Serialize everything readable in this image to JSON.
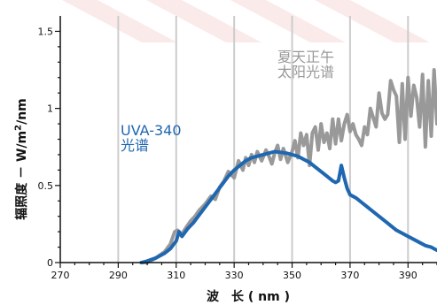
{
  "chart_data": {
    "type": "line",
    "xlabel": "波　长 ( nm )",
    "ylabel": {
      "prefix": "辐照度 － W/m",
      "sup": "2",
      "suffix": "/nm"
    },
    "xlim": [
      270,
      400
    ],
    "ylim": [
      0,
      1.6
    ],
    "xticks": [
      270,
      290,
      310,
      330,
      350,
      370,
      390
    ],
    "yticks": [
      {
        "value": 0,
        "label": "0"
      },
      {
        "value": 0.5,
        "label": "0.5"
      },
      {
        "value": 1,
        "label": "1"
      },
      {
        "value": 1.5,
        "label": "1.5"
      }
    ],
    "grid": {
      "vertical": true,
      "horizontal": false
    },
    "series": [
      {
        "name": "夏天正午太阳光谱",
        "annotation": [
          "夏天正午",
          "太阳光谱"
        ],
        "color": "#999999",
        "x": [
          298,
          300,
          303,
          306,
          308,
          309.5,
          310.5,
          311.5,
          312.5,
          313.5,
          315,
          316.5,
          318,
          320,
          322,
          323.5,
          325,
          326.5,
          328,
          330,
          331.5,
          333,
          334,
          335,
          336,
          337,
          338,
          339.5,
          341,
          342,
          343,
          344,
          345,
          346,
          347,
          348.5,
          350,
          351,
          352,
          353,
          354,
          355,
          356,
          357,
          358,
          359,
          360,
          361,
          362,
          363,
          364,
          365,
          366,
          367,
          368,
          369,
          370,
          371,
          372,
          373,
          374,
          375,
          376,
          377,
          378,
          379,
          380,
          381,
          382,
          383,
          384,
          385,
          386,
          387,
          388,
          389,
          390,
          391,
          392,
          393,
          394,
          395,
          396,
          397,
          398,
          399,
          400
        ],
        "y": [
          0.0,
          0.0,
          0.03,
          0.07,
          0.12,
          0.2,
          0.21,
          0.18,
          0.2,
          0.23,
          0.27,
          0.3,
          0.34,
          0.38,
          0.43,
          0.41,
          0.49,
          0.53,
          0.59,
          0.55,
          0.66,
          0.6,
          0.68,
          0.63,
          0.7,
          0.65,
          0.72,
          0.66,
          0.73,
          0.69,
          0.64,
          0.71,
          0.76,
          0.67,
          0.74,
          0.65,
          0.72,
          0.79,
          0.68,
          0.84,
          0.76,
          0.83,
          0.63,
          0.84,
          0.88,
          0.73,
          0.9,
          0.78,
          0.84,
          0.74,
          0.93,
          0.77,
          0.93,
          0.79,
          0.9,
          0.96,
          0.85,
          0.9,
          0.83,
          0.8,
          0.76,
          0.88,
          0.83,
          1.0,
          0.94,
          0.88,
          1.1,
          0.97,
          0.93,
          0.96,
          1.18,
          1.12,
          1.08,
          0.78,
          1.16,
          0.8,
          1.2,
          0.95,
          1.15,
          1.07,
          0.88,
          1.22,
          0.75,
          1.18,
          0.82,
          1.25,
          0.9
        ]
      },
      {
        "name": "UVA-340光谱",
        "annotation": [
          "UVA-340",
          "光谱"
        ],
        "color": "#1f67b1",
        "x": [
          298,
          300,
          303,
          306,
          308,
          310,
          311,
          312,
          314,
          316,
          318,
          320,
          322,
          324,
          326,
          328,
          330,
          332,
          334,
          336,
          338,
          340,
          342,
          344,
          346,
          348,
          350,
          352,
          354,
          356,
          358,
          360,
          362,
          364,
          365,
          366,
          367,
          368,
          369,
          370,
          372,
          374,
          376,
          378,
          380,
          382,
          384,
          386,
          388,
          390,
          392,
          394,
          396,
          398,
          400
        ],
        "y": [
          0.0,
          0.01,
          0.03,
          0.06,
          0.09,
          0.14,
          0.2,
          0.17,
          0.22,
          0.26,
          0.31,
          0.36,
          0.41,
          0.46,
          0.51,
          0.56,
          0.6,
          0.63,
          0.66,
          0.68,
          0.69,
          0.7,
          0.71,
          0.72,
          0.715,
          0.71,
          0.7,
          0.69,
          0.67,
          0.65,
          0.62,
          0.59,
          0.56,
          0.53,
          0.52,
          0.53,
          0.63,
          0.55,
          0.48,
          0.44,
          0.42,
          0.39,
          0.36,
          0.33,
          0.3,
          0.27,
          0.24,
          0.21,
          0.19,
          0.17,
          0.15,
          0.13,
          0.11,
          0.1,
          0.08
        ]
      }
    ]
  }
}
